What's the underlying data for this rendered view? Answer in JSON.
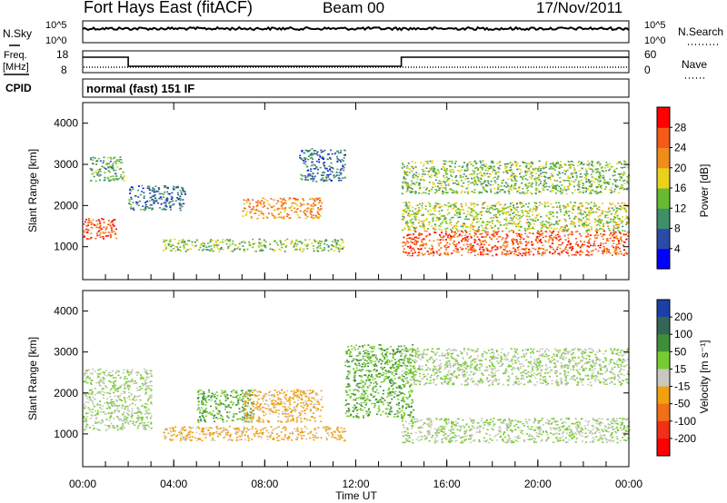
{
  "header": {
    "station": "Fort Hays East (fitACF)",
    "beam": "Beam 00",
    "date": "17/Nov/2011"
  },
  "noise_panel": {
    "left_label": "N.Sky",
    "right_label": "N.Search",
    "left_ticks": [
      "10^5",
      "10^0"
    ],
    "right_ticks": [
      "10^5",
      "10^0"
    ]
  },
  "freq_panel": {
    "left_label_top": "Freq.",
    "left_label_bottom": "[MHz]",
    "right_label": "Nave",
    "left_ticks": [
      "18",
      "8"
    ],
    "right_ticks": [
      "60",
      "0"
    ],
    "freq_steps": [
      {
        "start_h": 0,
        "end_h": 2,
        "level": "high"
      },
      {
        "start_h": 2,
        "end_h": 14,
        "level": "low"
      },
      {
        "start_h": 14,
        "end_h": 24,
        "level": "high"
      }
    ]
  },
  "cpid_panel": {
    "label": "CPID",
    "text": "normal (fast) 151 IF"
  },
  "power_panel": {
    "ylabel": "Slant Range [km]",
    "yticks": [
      "4000",
      "3000",
      "2000",
      "1000"
    ],
    "colorbar_label": "Power [dB]",
    "colorbar_ticks": [
      "28",
      "24",
      "20",
      "16",
      "12",
      "8",
      "4"
    ],
    "colors": [
      "#0000ff",
      "#2a4ba8",
      "#3f8f6a",
      "#66bb33",
      "#e8d21a",
      "#f08c1a",
      "#f45a1a",
      "#ff0000"
    ]
  },
  "velocity_panel": {
    "ylabel": "Slant Range [km]",
    "yticks": [
      "4000",
      "3000",
      "2000",
      "1000"
    ],
    "colorbar_label": "Velocity [m s⁻¹]",
    "colorbar_ticks": [
      "200",
      "100",
      "50",
      "15",
      "-15",
      "-50",
      "-100",
      "-200"
    ],
    "colors": [
      "#1c3fa8",
      "#336655",
      "#3f8f3a",
      "#78cc33",
      "#c8c8c0",
      "#f0a010",
      "#f07018",
      "#f03018",
      "#ff0000"
    ]
  },
  "xaxis": {
    "ticks": [
      "00:00",
      "04:00",
      "08:00",
      "12:00",
      "16:00",
      "20:00",
      "00:00"
    ],
    "label": "Time UT"
  },
  "chart_data": {
    "type": "heatmap",
    "title": "Fort Hays East (fitACF)",
    "beam": "Beam 00",
    "date": "17/Nov/2011",
    "x_unit": "hours UT",
    "xlim": [
      0,
      24
    ],
    "ylim": [
      200,
      4500
    ],
    "xlabel": "Time UT",
    "ylabel": "Slant Range [km]",
    "power_regions": [
      {
        "t0": 0.0,
        "t1": 1.5,
        "r0": 1200,
        "r1": 1700,
        "power_db": 26
      },
      {
        "t0": 0.3,
        "t1": 1.8,
        "r0": 2600,
        "r1": 3200,
        "power_db": 12
      },
      {
        "t0": 2.0,
        "t1": 4.5,
        "r0": 1900,
        "r1": 2500,
        "power_db": 8
      },
      {
        "t0": 3.5,
        "t1": 11.5,
        "r0": 900,
        "r1": 1200,
        "power_db": 14
      },
      {
        "t0": 7.0,
        "t1": 10.5,
        "r0": 1700,
        "r1": 2200,
        "power_db": 22
      },
      {
        "t0": 9.5,
        "t1": 11.5,
        "r0": 2600,
        "r1": 3400,
        "power_db": 8
      },
      {
        "t0": 14.0,
        "t1": 24.0,
        "r0": 800,
        "r1": 1400,
        "power_db": 26
      },
      {
        "t0": 14.0,
        "t1": 24.0,
        "r0": 1400,
        "r1": 2100,
        "power_db": 16
      },
      {
        "t0": 14.0,
        "t1": 24.0,
        "r0": 2300,
        "r1": 3100,
        "power_db": 14
      }
    ],
    "velocity_regions": [
      {
        "t0": 0.0,
        "t1": 3.0,
        "r0": 1100,
        "r1": 2600,
        "velocity": 0
      },
      {
        "t0": 5.0,
        "t1": 7.5,
        "r0": 1300,
        "r1": 2100,
        "velocity": 30
      },
      {
        "t0": 7.0,
        "t1": 10.5,
        "r0": 1300,
        "r1": 2100,
        "velocity": -40
      },
      {
        "t0": 3.5,
        "t1": 11.5,
        "r0": 850,
        "r1": 1200,
        "velocity": -40
      },
      {
        "t0": 11.5,
        "t1": 14.5,
        "r0": 1400,
        "r1": 3200,
        "velocity": 30
      },
      {
        "t0": 14.0,
        "t1": 24.0,
        "r0": 800,
        "r1": 1400,
        "velocity": 0
      },
      {
        "t0": 14.0,
        "t1": 24.0,
        "r0": 2200,
        "r1": 3100,
        "velocity": 0
      }
    ]
  }
}
